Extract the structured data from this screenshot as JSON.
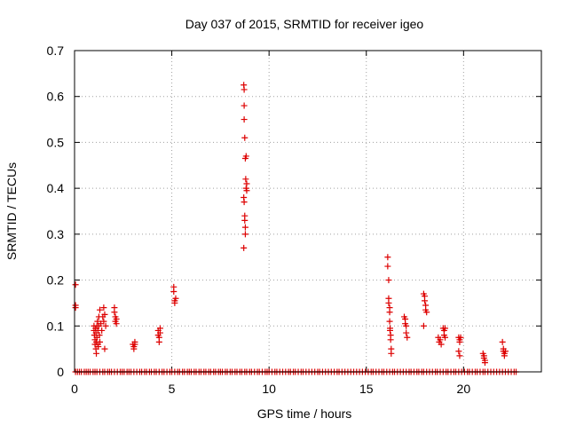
{
  "chart_data": {
    "type": "scatter",
    "title": "Day 037 of 2015, SRMTID for receiver igeo",
    "xlabel": "GPS time / hours",
    "ylabel": "SRMTID / TECUs",
    "xlim": [
      0,
      24
    ],
    "ylim": [
      0,
      0.7
    ],
    "x_ticks": [
      0,
      5,
      10,
      15,
      20
    ],
    "x_tick_labels": [
      "0",
      "5",
      "10",
      "15",
      "20"
    ],
    "y_ticks": [
      0,
      0.1,
      0.2,
      0.3,
      0.4,
      0.5,
      0.6,
      0.7
    ],
    "y_tick_labels": [
      "0",
      "0.1",
      "0.2",
      "0.3",
      "0.4",
      "0.5",
      "0.6",
      "0.7"
    ],
    "grid": true,
    "marker": "+",
    "marker_color": "#dd0000",
    "series": [
      {
        "name": "SRMTID",
        "points": [
          [
            0.05,
            0.19
          ],
          [
            0.05,
            0.145
          ],
          [
            0.05,
            0.14
          ],
          [
            1.0,
            0.1
          ],
          [
            1.0,
            0.09
          ],
          [
            1.02,
            0.08
          ],
          [
            1.05,
            0.07
          ],
          [
            1.05,
            0.06
          ],
          [
            1.08,
            0.095
          ],
          [
            1.1,
            0.085
          ],
          [
            1.1,
            0.05
          ],
          [
            1.12,
            0.065
          ],
          [
            1.12,
            0.04
          ],
          [
            1.15,
            0.1
          ],
          [
            1.15,
            0.075
          ],
          [
            1.18,
            0.11
          ],
          [
            1.2,
            0.09
          ],
          [
            1.2,
            0.06
          ],
          [
            1.22,
            0.055
          ],
          [
            1.25,
            0.12
          ],
          [
            1.25,
            0.1
          ],
          [
            1.28,
            0.08
          ],
          [
            1.3,
            0.135
          ],
          [
            1.3,
            0.065
          ],
          [
            1.35,
            0.105
          ],
          [
            1.4,
            0.09
          ],
          [
            1.45,
            0.12
          ],
          [
            1.5,
            0.14
          ],
          [
            1.5,
            0.11
          ],
          [
            1.55,
            0.125
          ],
          [
            1.55,
            0.05
          ],
          [
            1.6,
            0.1
          ],
          [
            2.05,
            0.14
          ],
          [
            2.05,
            0.13
          ],
          [
            2.1,
            0.12
          ],
          [
            2.1,
            0.11
          ],
          [
            2.15,
            0.115
          ],
          [
            2.15,
            0.105
          ],
          [
            3.0,
            0.06
          ],
          [
            3.05,
            0.055
          ],
          [
            3.05,
            0.05
          ],
          [
            3.1,
            0.065
          ],
          [
            3.1,
            0.06
          ],
          [
            4.3,
            0.09
          ],
          [
            4.3,
            0.08
          ],
          [
            4.35,
            0.075
          ],
          [
            4.35,
            0.065
          ],
          [
            4.4,
            0.085
          ],
          [
            4.4,
            0.095
          ],
          [
            5.1,
            0.185
          ],
          [
            5.1,
            0.175
          ],
          [
            5.15,
            0.155
          ],
          [
            5.15,
            0.15
          ],
          [
            5.2,
            0.16
          ],
          [
            8.7,
            0.625
          ],
          [
            8.72,
            0.615
          ],
          [
            8.72,
            0.58
          ],
          [
            8.72,
            0.55
          ],
          [
            8.75,
            0.51
          ],
          [
            8.78,
            0.465
          ],
          [
            8.8,
            0.42
          ],
          [
            8.82,
            0.47
          ],
          [
            8.82,
            0.4
          ],
          [
            8.85,
            0.395
          ],
          [
            8.85,
            0.41
          ],
          [
            8.7,
            0.38
          ],
          [
            8.72,
            0.37
          ],
          [
            8.75,
            0.34
          ],
          [
            8.75,
            0.33
          ],
          [
            8.78,
            0.315
          ],
          [
            8.78,
            0.3
          ],
          [
            8.7,
            0.27
          ],
          [
            16.1,
            0.25
          ],
          [
            16.1,
            0.23
          ],
          [
            16.15,
            0.2
          ],
          [
            16.15,
            0.16
          ],
          [
            16.15,
            0.15
          ],
          [
            16.2,
            0.14
          ],
          [
            16.2,
            0.13
          ],
          [
            16.2,
            0.11
          ],
          [
            16.22,
            0.095
          ],
          [
            16.22,
            0.09
          ],
          [
            16.25,
            0.08
          ],
          [
            16.25,
            0.07
          ],
          [
            16.28,
            0.05
          ],
          [
            16.28,
            0.04
          ],
          [
            16.95,
            0.12
          ],
          [
            17.0,
            0.115
          ],
          [
            17.0,
            0.105
          ],
          [
            17.05,
            0.1
          ],
          [
            17.05,
            0.085
          ],
          [
            17.1,
            0.075
          ],
          [
            17.95,
            0.17
          ],
          [
            18.0,
            0.165
          ],
          [
            18.0,
            0.155
          ],
          [
            18.05,
            0.145
          ],
          [
            18.05,
            0.135
          ],
          [
            18.1,
            0.13
          ],
          [
            17.95,
            0.1
          ],
          [
            18.7,
            0.075
          ],
          [
            18.75,
            0.065
          ],
          [
            18.8,
            0.07
          ],
          [
            18.85,
            0.06
          ],
          [
            18.95,
            0.095
          ],
          [
            19.0,
            0.09
          ],
          [
            19.0,
            0.08
          ],
          [
            19.05,
            0.095
          ],
          [
            19.05,
            0.075
          ],
          [
            19.75,
            0.075
          ],
          [
            19.8,
            0.07
          ],
          [
            19.8,
            0.065
          ],
          [
            19.85,
            0.075
          ],
          [
            19.75,
            0.045
          ],
          [
            19.8,
            0.035
          ],
          [
            21.0,
            0.04
          ],
          [
            21.05,
            0.035
          ],
          [
            21.05,
            0.03
          ],
          [
            21.1,
            0.025
          ],
          [
            21.1,
            0.02
          ],
          [
            22.0,
            0.065
          ],
          [
            22.05,
            0.05
          ],
          [
            22.05,
            0.045
          ],
          [
            22.1,
            0.04
          ],
          [
            22.1,
            0.035
          ],
          [
            22.15,
            0.045
          ]
        ],
        "zero_points_x": [
          0.05,
          0.15,
          0.25,
          0.35,
          0.5,
          0.6,
          0.7,
          0.8,
          0.95,
          1.05,
          1.15,
          1.3,
          1.45,
          1.55,
          1.7,
          1.8,
          1.9,
          2.05,
          2.2,
          2.35,
          2.45,
          2.55,
          2.7,
          2.8,
          2.9,
          3.05,
          3.2,
          3.35,
          3.45,
          3.6,
          3.7,
          3.85,
          3.95,
          4.1,
          4.2,
          4.35,
          4.5,
          4.6,
          4.75,
          4.9,
          5.0,
          5.15,
          5.3,
          5.4,
          5.55,
          5.65,
          5.8,
          5.9,
          6.0,
          6.15,
          6.25,
          6.4,
          6.5,
          6.65,
          6.75,
          6.9,
          7.0,
          7.15,
          7.25,
          7.4,
          7.5,
          7.6,
          7.75,
          7.85,
          8.0,
          8.1,
          8.25,
          8.35,
          8.5,
          8.6,
          8.75,
          8.85,
          9.0,
          9.1,
          9.25,
          9.4,
          9.5,
          9.65,
          9.8,
          9.9,
          10.0,
          10.15,
          10.3,
          10.4,
          10.55,
          10.7,
          10.85,
          11.0,
          11.1,
          11.25,
          11.35,
          11.5,
          11.65,
          11.75,
          11.9,
          12.05,
          12.2,
          12.35,
          12.5,
          12.6,
          12.75,
          12.9,
          13.05,
          13.2,
          13.35,
          13.5,
          13.6,
          13.75,
          13.9,
          14.05,
          14.2,
          14.35,
          14.5,
          14.65,
          14.8,
          14.95,
          15.1,
          15.25,
          15.35,
          15.5,
          15.65,
          15.8,
          15.9,
          16.05,
          16.2,
          16.35,
          16.45,
          16.6,
          16.75,
          16.9,
          17.05,
          17.2,
          17.3,
          17.45,
          17.6,
          17.7,
          17.85,
          17.95,
          18.1,
          18.25,
          18.4,
          18.55,
          18.65,
          18.8,
          18.95,
          19.1,
          19.2,
          19.35,
          19.5,
          19.6,
          19.75,
          19.9,
          20.05,
          20.2,
          20.3,
          20.45,
          20.6,
          20.7,
          20.85,
          21.0,
          21.1,
          21.25,
          21.4,
          21.55,
          21.7,
          21.85,
          22.0,
          22.15,
          22.3,
          22.45,
          22.6,
          22.7
        ]
      }
    ]
  }
}
